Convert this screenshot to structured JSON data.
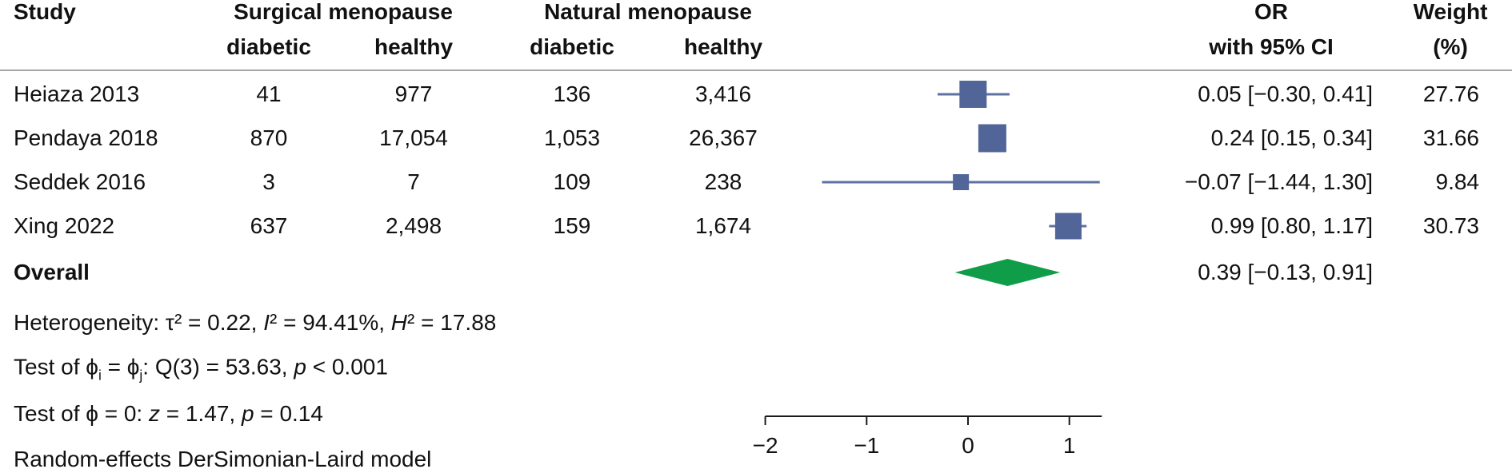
{
  "chart_data": {
    "type": "forest",
    "effect_measure": "OR",
    "columns": {
      "study": "Study",
      "group_surgical": "Surgical menopause",
      "group_natural": "Natural menopause",
      "sub_diabetic": "diabetic",
      "sub_healthy": "healthy",
      "or_line1": "OR",
      "or_line2": "with 95% CI",
      "weight_line1": "Weight",
      "weight_line2": "(%)"
    },
    "studies": [
      {
        "name": "Heiaza 2013",
        "surgical_diabetic": "41",
        "surgical_healthy": "977",
        "natural_diabetic": "136",
        "natural_healthy": "3,416",
        "or": 0.05,
        "ci_low": -0.3,
        "ci_high": 0.41,
        "or_ci_label": "0.05 [−0.30, 0.41]",
        "weight": 27.76,
        "weight_label": "27.76"
      },
      {
        "name": "Pendaya 2018",
        "surgical_diabetic": "870",
        "surgical_healthy": "17,054",
        "natural_diabetic": "1,053",
        "natural_healthy": "26,367",
        "or": 0.24,
        "ci_low": 0.15,
        "ci_high": 0.34,
        "or_ci_label": "0.24 [0.15, 0.34]",
        "weight": 31.66,
        "weight_label": "31.66"
      },
      {
        "name": "Seddek 2016",
        "surgical_diabetic": "3",
        "surgical_healthy": "7",
        "natural_diabetic": "109",
        "natural_healthy": "238",
        "or": -0.07,
        "ci_low": -1.44,
        "ci_high": 1.3,
        "or_ci_label": "−0.07 [−1.44, 1.30]",
        "weight": 9.84,
        "weight_label": "9.84"
      },
      {
        "name": "Xing 2022",
        "surgical_diabetic": "637",
        "surgical_healthy": "2,498",
        "natural_diabetic": "159",
        "natural_healthy": "1,674",
        "or": 0.99,
        "ci_low": 0.8,
        "ci_high": 1.17,
        "or_ci_label": "0.99 [0.80, 1.17]",
        "weight": 30.73,
        "weight_label": "30.73"
      }
    ],
    "overall": {
      "label": "Overall",
      "or": 0.39,
      "ci_low": -0.13,
      "ci_high": 0.91,
      "or_ci_label": "0.39 [−0.13, 0.91]"
    },
    "heterogeneity": {
      "tau2": 0.22,
      "i2_percent": 94.41,
      "h2": 17.88
    },
    "tests": {
      "q_df": 3,
      "q": 53.63,
      "q_p": "< 0.001",
      "z": 1.47,
      "z_p": 0.14
    },
    "axis": {
      "ticks": [
        -2,
        -1,
        0,
        1
      ],
      "tick_labels": [
        "−2",
        "−1",
        "0",
        "1"
      ],
      "xlim": [
        -2,
        1.32
      ],
      "position": "bottom"
    },
    "colors": {
      "square": "#526598",
      "ci_line": "#5d71a3",
      "diamond": "#0f9d4a"
    }
  },
  "footer": {
    "heterogeneity": {
      "p1": "Heterogeneity: τ² = 0.22, ",
      "i_sym": "I",
      "p2": "² = 94.41%, ",
      "h_sym": "H",
      "p3": "² = 17.88"
    },
    "test_eq": {
      "p1": "Test of ϕ",
      "sub_i": "i",
      "p2": " = ϕ",
      "sub_j": "j",
      "p3": ": Q(3) = 53.63, ",
      "p_sym": "p",
      "p4": " < 0.001"
    },
    "test_zero": {
      "p1": "Test of ϕ = 0: ",
      "z_sym": "z",
      "p2": " = 1.47, ",
      "p_sym": "p",
      "p3": " = 0.14"
    },
    "model": "Random-effects DerSimonian-Laird model"
  }
}
